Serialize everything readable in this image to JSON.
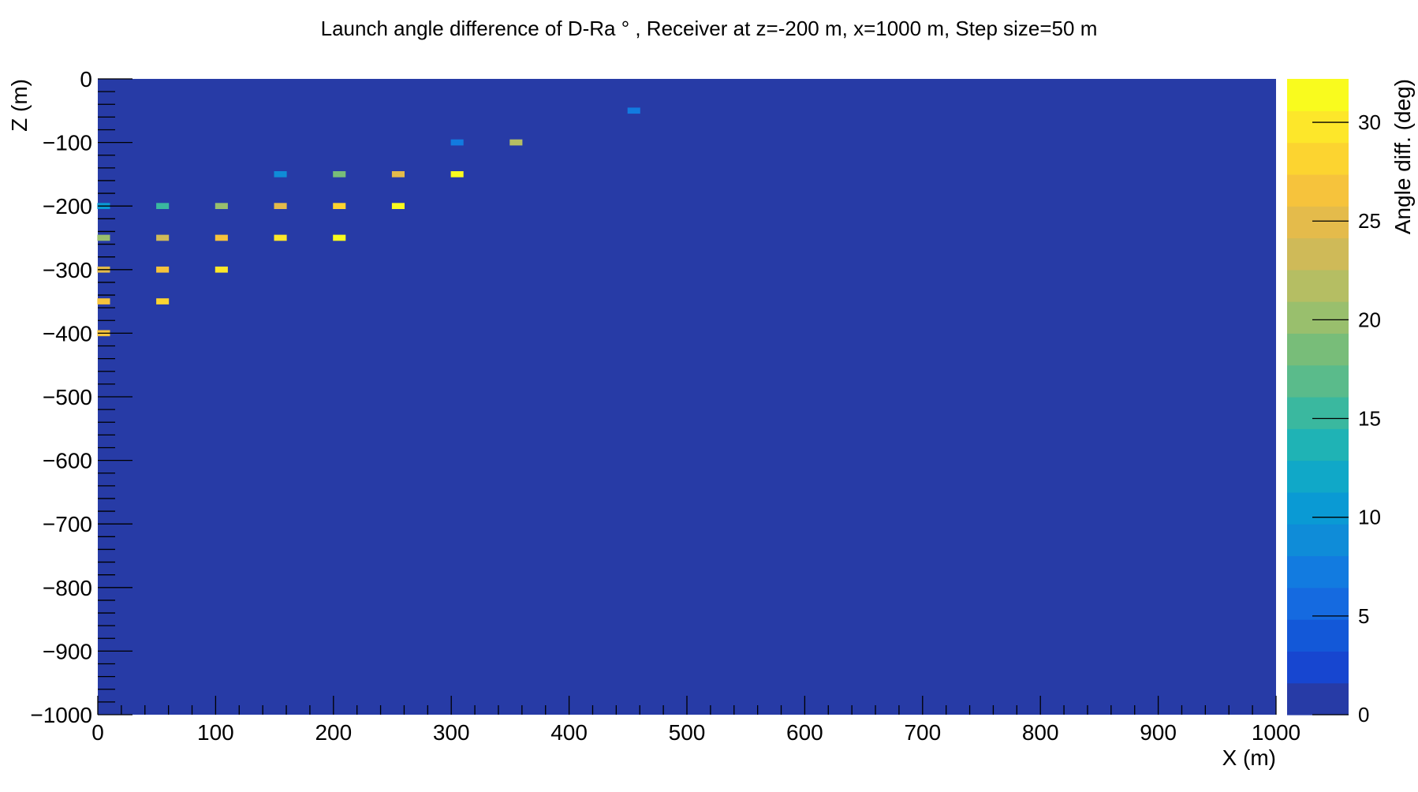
{
  "chart_data": {
    "type": "heatmap",
    "title": "Launch angle difference of D-Ra ° , Receiver at z=-200 m, x=1000 m, Step size=50 m",
    "xlabel": "X (m)",
    "ylabel": "Z (m)",
    "zlabel": "Angle diff. (deg)",
    "xlim": [
      0,
      1000
    ],
    "ylim": [
      -1000,
      0
    ],
    "zlim": [
      0,
      32.2
    ],
    "x_ticks": [
      0,
      100,
      200,
      300,
      400,
      500,
      600,
      700,
      800,
      900,
      1000
    ],
    "y_ticks": [
      0,
      -100,
      -200,
      -300,
      -400,
      -500,
      -600,
      -700,
      -800,
      -900,
      -1000
    ],
    "z_ticks": [
      0,
      5,
      10,
      15,
      20,
      25,
      30
    ],
    "x_tick_labels": [
      "0",
      "100",
      "200",
      "300",
      "400",
      "500",
      "600",
      "700",
      "800",
      "900",
      "1000"
    ],
    "y_tick_labels": [
      "0",
      "−100",
      "−200",
      "−300",
      "−400",
      "−500",
      "−600",
      "−700",
      "−800",
      "−900",
      "−1000"
    ],
    "z_tick_labels": [
      "0",
      "5",
      "10",
      "15",
      "20",
      "25",
      "30"
    ],
    "background_value": 0,
    "palette": [
      "#273ba6",
      "#1746d0",
      "#1358d8",
      "#156ae0",
      "#127be0",
      "#0f8cd8",
      "#0a9ad4",
      "#10a8c8",
      "#1fb3b5",
      "#3ab89f",
      "#5abb8b",
      "#78bd79",
      "#99bf6d",
      "#b5be63",
      "#cfba58",
      "#e4bb4b",
      "#f6c33c",
      "#fcd430",
      "#fde72a",
      "#f9fb1e"
    ],
    "cells": [
      {
        "x": 0,
        "z": -200,
        "value": 10
      },
      {
        "x": 0,
        "z": -250,
        "value": 20
      },
      {
        "x": 0,
        "z": -300,
        "value": 25
      },
      {
        "x": 0,
        "z": -350,
        "value": 27
      },
      {
        "x": 0,
        "z": -400,
        "value": 27
      },
      {
        "x": 50,
        "z": -200,
        "value": 15
      },
      {
        "x": 50,
        "z": -250,
        "value": 23
      },
      {
        "x": 50,
        "z": -300,
        "value": 27
      },
      {
        "x": 50,
        "z": -350,
        "value": 28
      },
      {
        "x": 100,
        "z": -200,
        "value": 20
      },
      {
        "x": 100,
        "z": -250,
        "value": 27
      },
      {
        "x": 100,
        "z": -300,
        "value": 29
      },
      {
        "x": 150,
        "z": -150,
        "value": 9
      },
      {
        "x": 150,
        "z": -200,
        "value": 25
      },
      {
        "x": 150,
        "z": -250,
        "value": 30
      },
      {
        "x": 200,
        "z": -150,
        "value": 19
      },
      {
        "x": 200,
        "z": -200,
        "value": 28
      },
      {
        "x": 200,
        "z": -250,
        "value": 31
      },
      {
        "x": 250,
        "z": -150,
        "value": 25
      },
      {
        "x": 250,
        "z": -200,
        "value": 32
      },
      {
        "x": 300,
        "z": -100,
        "value": 8
      },
      {
        "x": 300,
        "z": -150,
        "value": 31
      },
      {
        "x": 350,
        "z": -100,
        "value": 22
      },
      {
        "x": 450,
        "z": -50,
        "value": 8
      }
    ]
  }
}
